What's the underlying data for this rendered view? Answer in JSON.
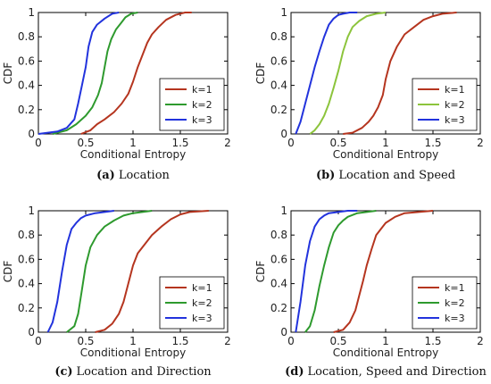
{
  "chart_data": [
    {
      "type": "line",
      "caption_letter": "(a)",
      "caption_text": "Location",
      "xlabel": "Conditional Entropy",
      "ylabel": "CDF",
      "xlim": [
        0,
        2
      ],
      "ylim": [
        0,
        1
      ],
      "xticks": [
        "0",
        "0.5",
        "1",
        "1.5",
        "2"
      ],
      "yticks": [
        "0",
        "0.2",
        "0.4",
        "0.6",
        "0.8",
        "1"
      ],
      "grid": false,
      "legend_position": "bottom-right",
      "series": [
        {
          "name": "k=1",
          "color": "#b5351f",
          "x": [
            0.45,
            0.55,
            0.62,
            0.7,
            0.8,
            0.88,
            0.95,
            1.0,
            1.05,
            1.1,
            1.15,
            1.2,
            1.27,
            1.35,
            1.45,
            1.55,
            1.62
          ],
          "y": [
            0.0,
            0.03,
            0.08,
            0.12,
            0.18,
            0.25,
            0.33,
            0.43,
            0.55,
            0.65,
            0.75,
            0.82,
            0.88,
            0.94,
            0.98,
            1.0,
            1.0
          ]
        },
        {
          "name": "k=2",
          "color": "#2e9a2e",
          "x": [
            0.15,
            0.3,
            0.4,
            0.5,
            0.57,
            0.63,
            0.67,
            0.7,
            0.73,
            0.77,
            0.82,
            0.88,
            0.92,
            0.98,
            1.05
          ],
          "y": [
            0.0,
            0.03,
            0.08,
            0.15,
            0.22,
            0.32,
            0.42,
            0.55,
            0.68,
            0.78,
            0.86,
            0.92,
            0.96,
            0.99,
            1.0
          ]
        },
        {
          "name": "k=3",
          "color": "#2233dd",
          "x": [
            0.0,
            0.1,
            0.2,
            0.3,
            0.38,
            0.42,
            0.46,
            0.5,
            0.53,
            0.57,
            0.62,
            0.7,
            0.78,
            0.85
          ],
          "y": [
            0.0,
            0.01,
            0.02,
            0.05,
            0.12,
            0.25,
            0.4,
            0.55,
            0.72,
            0.84,
            0.9,
            0.95,
            0.99,
            1.0
          ]
        }
      ]
    },
    {
      "type": "line",
      "caption_letter": "(b)",
      "caption_text": "Location and Speed",
      "xlabel": "Conditional Entropy",
      "ylabel": "CDF",
      "xlim": [
        0,
        2
      ],
      "ylim": [
        0,
        1
      ],
      "xticks": [
        "0",
        "0.5",
        "1",
        "1.5",
        "2"
      ],
      "yticks": [
        "0",
        "0.2",
        "0.4",
        "0.6",
        "0.8",
        "1"
      ],
      "grid": false,
      "legend_position": "bottom-right",
      "series": [
        {
          "name": "k=1",
          "color": "#b5351f",
          "x": [
            0.55,
            0.65,
            0.75,
            0.82,
            0.87,
            0.92,
            0.97,
            1.0,
            1.05,
            1.12,
            1.2,
            1.3,
            1.4,
            1.5,
            1.6,
            1.75
          ],
          "y": [
            0.0,
            0.01,
            0.05,
            0.1,
            0.15,
            0.22,
            0.32,
            0.45,
            0.6,
            0.72,
            0.82,
            0.88,
            0.94,
            0.97,
            0.99,
            1.0
          ]
        },
        {
          "name": "k=2",
          "color": "#8cc43c",
          "x": [
            0.2,
            0.25,
            0.3,
            0.35,
            0.4,
            0.45,
            0.5,
            0.55,
            0.6,
            0.65,
            0.72,
            0.8,
            0.9,
            1.0
          ],
          "y": [
            0.0,
            0.03,
            0.08,
            0.15,
            0.25,
            0.38,
            0.52,
            0.68,
            0.8,
            0.88,
            0.93,
            0.97,
            0.99,
            1.0
          ]
        },
        {
          "name": "k=3",
          "color": "#2233dd",
          "x": [
            0.05,
            0.1,
            0.15,
            0.2,
            0.25,
            0.3,
            0.35,
            0.4,
            0.45,
            0.5,
            0.55,
            0.62,
            0.7
          ],
          "y": [
            0.0,
            0.1,
            0.25,
            0.4,
            0.55,
            0.68,
            0.8,
            0.9,
            0.95,
            0.98,
            0.99,
            1.0,
            1.0
          ]
        }
      ]
    },
    {
      "type": "line",
      "caption_letter": "(c)",
      "caption_text": "Location and Direction",
      "xlabel": "Conditional Entropy",
      "ylabel": "CDF",
      "xlim": [
        0,
        2
      ],
      "ylim": [
        0,
        1
      ],
      "xticks": [
        "0",
        "0.5",
        "1",
        "1.5",
        "2"
      ],
      "yticks": [
        "0",
        "0.2",
        "0.4",
        "0.6",
        "0.8",
        "1"
      ],
      "grid": false,
      "legend_position": "bottom-right",
      "series": [
        {
          "name": "k=1",
          "color": "#b5351f",
          "x": [
            0.6,
            0.7,
            0.78,
            0.85,
            0.9,
            0.95,
            1.0,
            1.05,
            1.12,
            1.2,
            1.3,
            1.4,
            1.5,
            1.6,
            1.8
          ],
          "y": [
            0.0,
            0.02,
            0.07,
            0.15,
            0.25,
            0.4,
            0.55,
            0.65,
            0.72,
            0.8,
            0.87,
            0.93,
            0.97,
            0.99,
            1.0
          ]
        },
        {
          "name": "k=2",
          "color": "#2e9a2e",
          "x": [
            0.3,
            0.38,
            0.42,
            0.46,
            0.5,
            0.55,
            0.62,
            0.7,
            0.8,
            0.9,
            1.0,
            1.1,
            1.2
          ],
          "y": [
            0.0,
            0.05,
            0.15,
            0.35,
            0.55,
            0.7,
            0.8,
            0.87,
            0.92,
            0.96,
            0.98,
            0.99,
            1.0
          ]
        },
        {
          "name": "k=3",
          "color": "#2233dd",
          "x": [
            0.1,
            0.15,
            0.2,
            0.25,
            0.3,
            0.35,
            0.4,
            0.45,
            0.5,
            0.6,
            0.7,
            0.8
          ],
          "y": [
            0.0,
            0.08,
            0.25,
            0.5,
            0.72,
            0.85,
            0.9,
            0.94,
            0.96,
            0.98,
            0.99,
            1.0
          ]
        }
      ]
    },
    {
      "type": "line",
      "caption_letter": "(d)",
      "caption_text": "Location, Speed and Direction",
      "xlabel": "Conditional Entropy",
      "ylabel": "CDF",
      "xlim": [
        0,
        2
      ],
      "ylim": [
        0,
        1
      ],
      "xticks": [
        "0",
        "0.5",
        "1",
        "1.5",
        "2"
      ],
      "yticks": [
        "0",
        "0.2",
        "0.4",
        "0.6",
        "0.8",
        "1"
      ],
      "grid": false,
      "legend_position": "bottom-right",
      "series": [
        {
          "name": "k=1",
          "color": "#b5351f",
          "x": [
            0.45,
            0.55,
            0.62,
            0.68,
            0.72,
            0.76,
            0.8,
            0.85,
            0.9,
            1.0,
            1.1,
            1.2,
            1.35,
            1.5
          ],
          "y": [
            0.0,
            0.02,
            0.08,
            0.18,
            0.3,
            0.42,
            0.55,
            0.68,
            0.8,
            0.9,
            0.95,
            0.98,
            0.99,
            1.0
          ]
        },
        {
          "name": "k=2",
          "color": "#2e9a2e",
          "x": [
            0.15,
            0.2,
            0.25,
            0.3,
            0.35,
            0.4,
            0.45,
            0.5,
            0.55,
            0.6,
            0.7,
            0.8,
            0.9
          ],
          "y": [
            0.0,
            0.05,
            0.18,
            0.38,
            0.55,
            0.7,
            0.82,
            0.88,
            0.92,
            0.95,
            0.98,
            0.99,
            1.0
          ]
        },
        {
          "name": "k=3",
          "color": "#2233dd",
          "x": [
            0.05,
            0.1,
            0.15,
            0.2,
            0.25,
            0.3,
            0.35,
            0.4,
            0.5,
            0.6,
            0.7
          ],
          "y": [
            0.0,
            0.25,
            0.55,
            0.75,
            0.87,
            0.93,
            0.96,
            0.98,
            0.99,
            1.0,
            1.0
          ]
        }
      ]
    }
  ]
}
